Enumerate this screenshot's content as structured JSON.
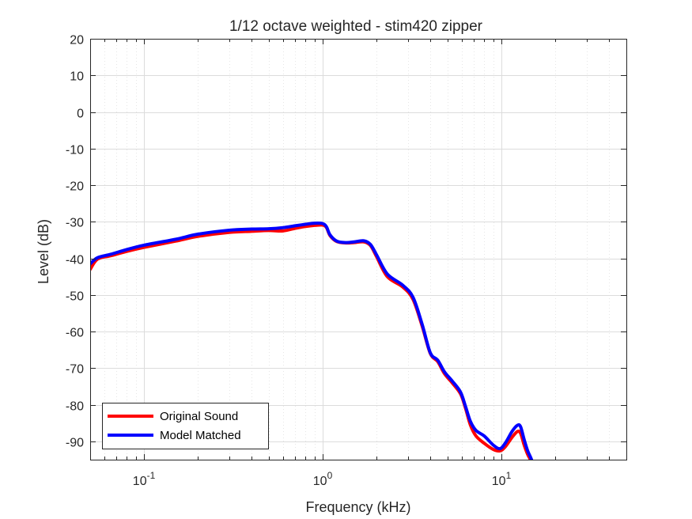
{
  "chart_data": {
    "type": "line",
    "title": "1/12 octave weighted - stim420 zipper",
    "xlabel": "Frequency (kHz)",
    "ylabel": "Level (dB)",
    "xscale": "log",
    "xlim": [
      0.05,
      50
    ],
    "ylim": [
      -95,
      20
    ],
    "yticks": [
      20,
      10,
      0,
      -10,
      -20,
      -30,
      -40,
      -50,
      -60,
      -70,
      -80,
      -90
    ],
    "ytick_labels": [
      "20",
      "10",
      "0",
      "-10",
      "-20",
      "-30",
      "-40",
      "-50",
      "-60",
      "-70",
      "-80",
      "-90"
    ],
    "xticks": [
      {
        "value": 0.1,
        "base": "10",
        "exp": "-1"
      },
      {
        "value": 1,
        "base": "10",
        "exp": "0"
      },
      {
        "value": 10,
        "base": "10",
        "exp": "1"
      }
    ],
    "grid": true,
    "minor_grid": true,
    "legend_position": "bottom-left",
    "series": [
      {
        "name": "Original Sound",
        "color": "#ff0000",
        "x": [
          0.05,
          0.055,
          0.065,
          0.08,
          0.1,
          0.15,
          0.2,
          0.3,
          0.4,
          0.5,
          0.6,
          0.7,
          0.8,
          0.9,
          1.0,
          1.05,
          1.1,
          1.2,
          1.35,
          1.5,
          1.7,
          1.85,
          2.0,
          2.3,
          2.8,
          3.2,
          3.6,
          4.0,
          4.4,
          4.8,
          5.3,
          5.9,
          6.3,
          6.7,
          7.2,
          8.0,
          9.0,
          9.8,
          10.5,
          11.5,
          12.3,
          12.8,
          13.4,
          14.0,
          14.6,
          15.0
        ],
        "y": [
          -43,
          -40.2,
          -39.3,
          -38.1,
          -37,
          -35.3,
          -34,
          -32.9,
          -32.6,
          -32.4,
          -32.5,
          -31.8,
          -31.3,
          -31.0,
          -30.9,
          -31.6,
          -33.8,
          -35.4,
          -35.8,
          -35.7,
          -35.5,
          -36.5,
          -39.5,
          -45,
          -47.8,
          -51.2,
          -58.5,
          -66,
          -68.2,
          -71.5,
          -74,
          -77,
          -81,
          -85.5,
          -88.5,
          -90.5,
          -92.2,
          -92.6,
          -91.5,
          -88.8,
          -87.3,
          -87.8,
          -91,
          -93.5,
          -95.2,
          -96.5
        ]
      },
      {
        "name": "Model Matched",
        "color": "#0000ff",
        "x": [
          0.05,
          0.055,
          0.065,
          0.08,
          0.1,
          0.15,
          0.2,
          0.3,
          0.4,
          0.5,
          0.6,
          0.7,
          0.8,
          0.9,
          1.0,
          1.05,
          1.1,
          1.2,
          1.35,
          1.5,
          1.7,
          1.85,
          2.0,
          2.3,
          2.8,
          3.2,
          3.6,
          4.0,
          4.4,
          4.8,
          5.3,
          5.9,
          6.3,
          6.7,
          7.2,
          8.0,
          9.0,
          9.8,
          10.5,
          11.5,
          12.3,
          12.8,
          13.4,
          14.0,
          14.6,
          15.0
        ],
        "y": [
          -41.5,
          -39.8,
          -38.9,
          -37.6,
          -36.4,
          -34.8,
          -33.4,
          -32.3,
          -32.0,
          -31.9,
          -31.6,
          -31.1,
          -30.7,
          -30.4,
          -30.5,
          -31.4,
          -33.6,
          -35.3,
          -35.7,
          -35.5,
          -35.2,
          -36.2,
          -39.0,
          -44.3,
          -47.3,
          -50.6,
          -58.0,
          -65.8,
          -67.8,
          -71.0,
          -73.5,
          -76.5,
          -80.5,
          -84.5,
          -87.0,
          -88.5,
          -91.0,
          -92.0,
          -90.5,
          -87.2,
          -85.6,
          -86.0,
          -89.5,
          -92.5,
          -94.5,
          -96.0
        ]
      }
    ]
  }
}
